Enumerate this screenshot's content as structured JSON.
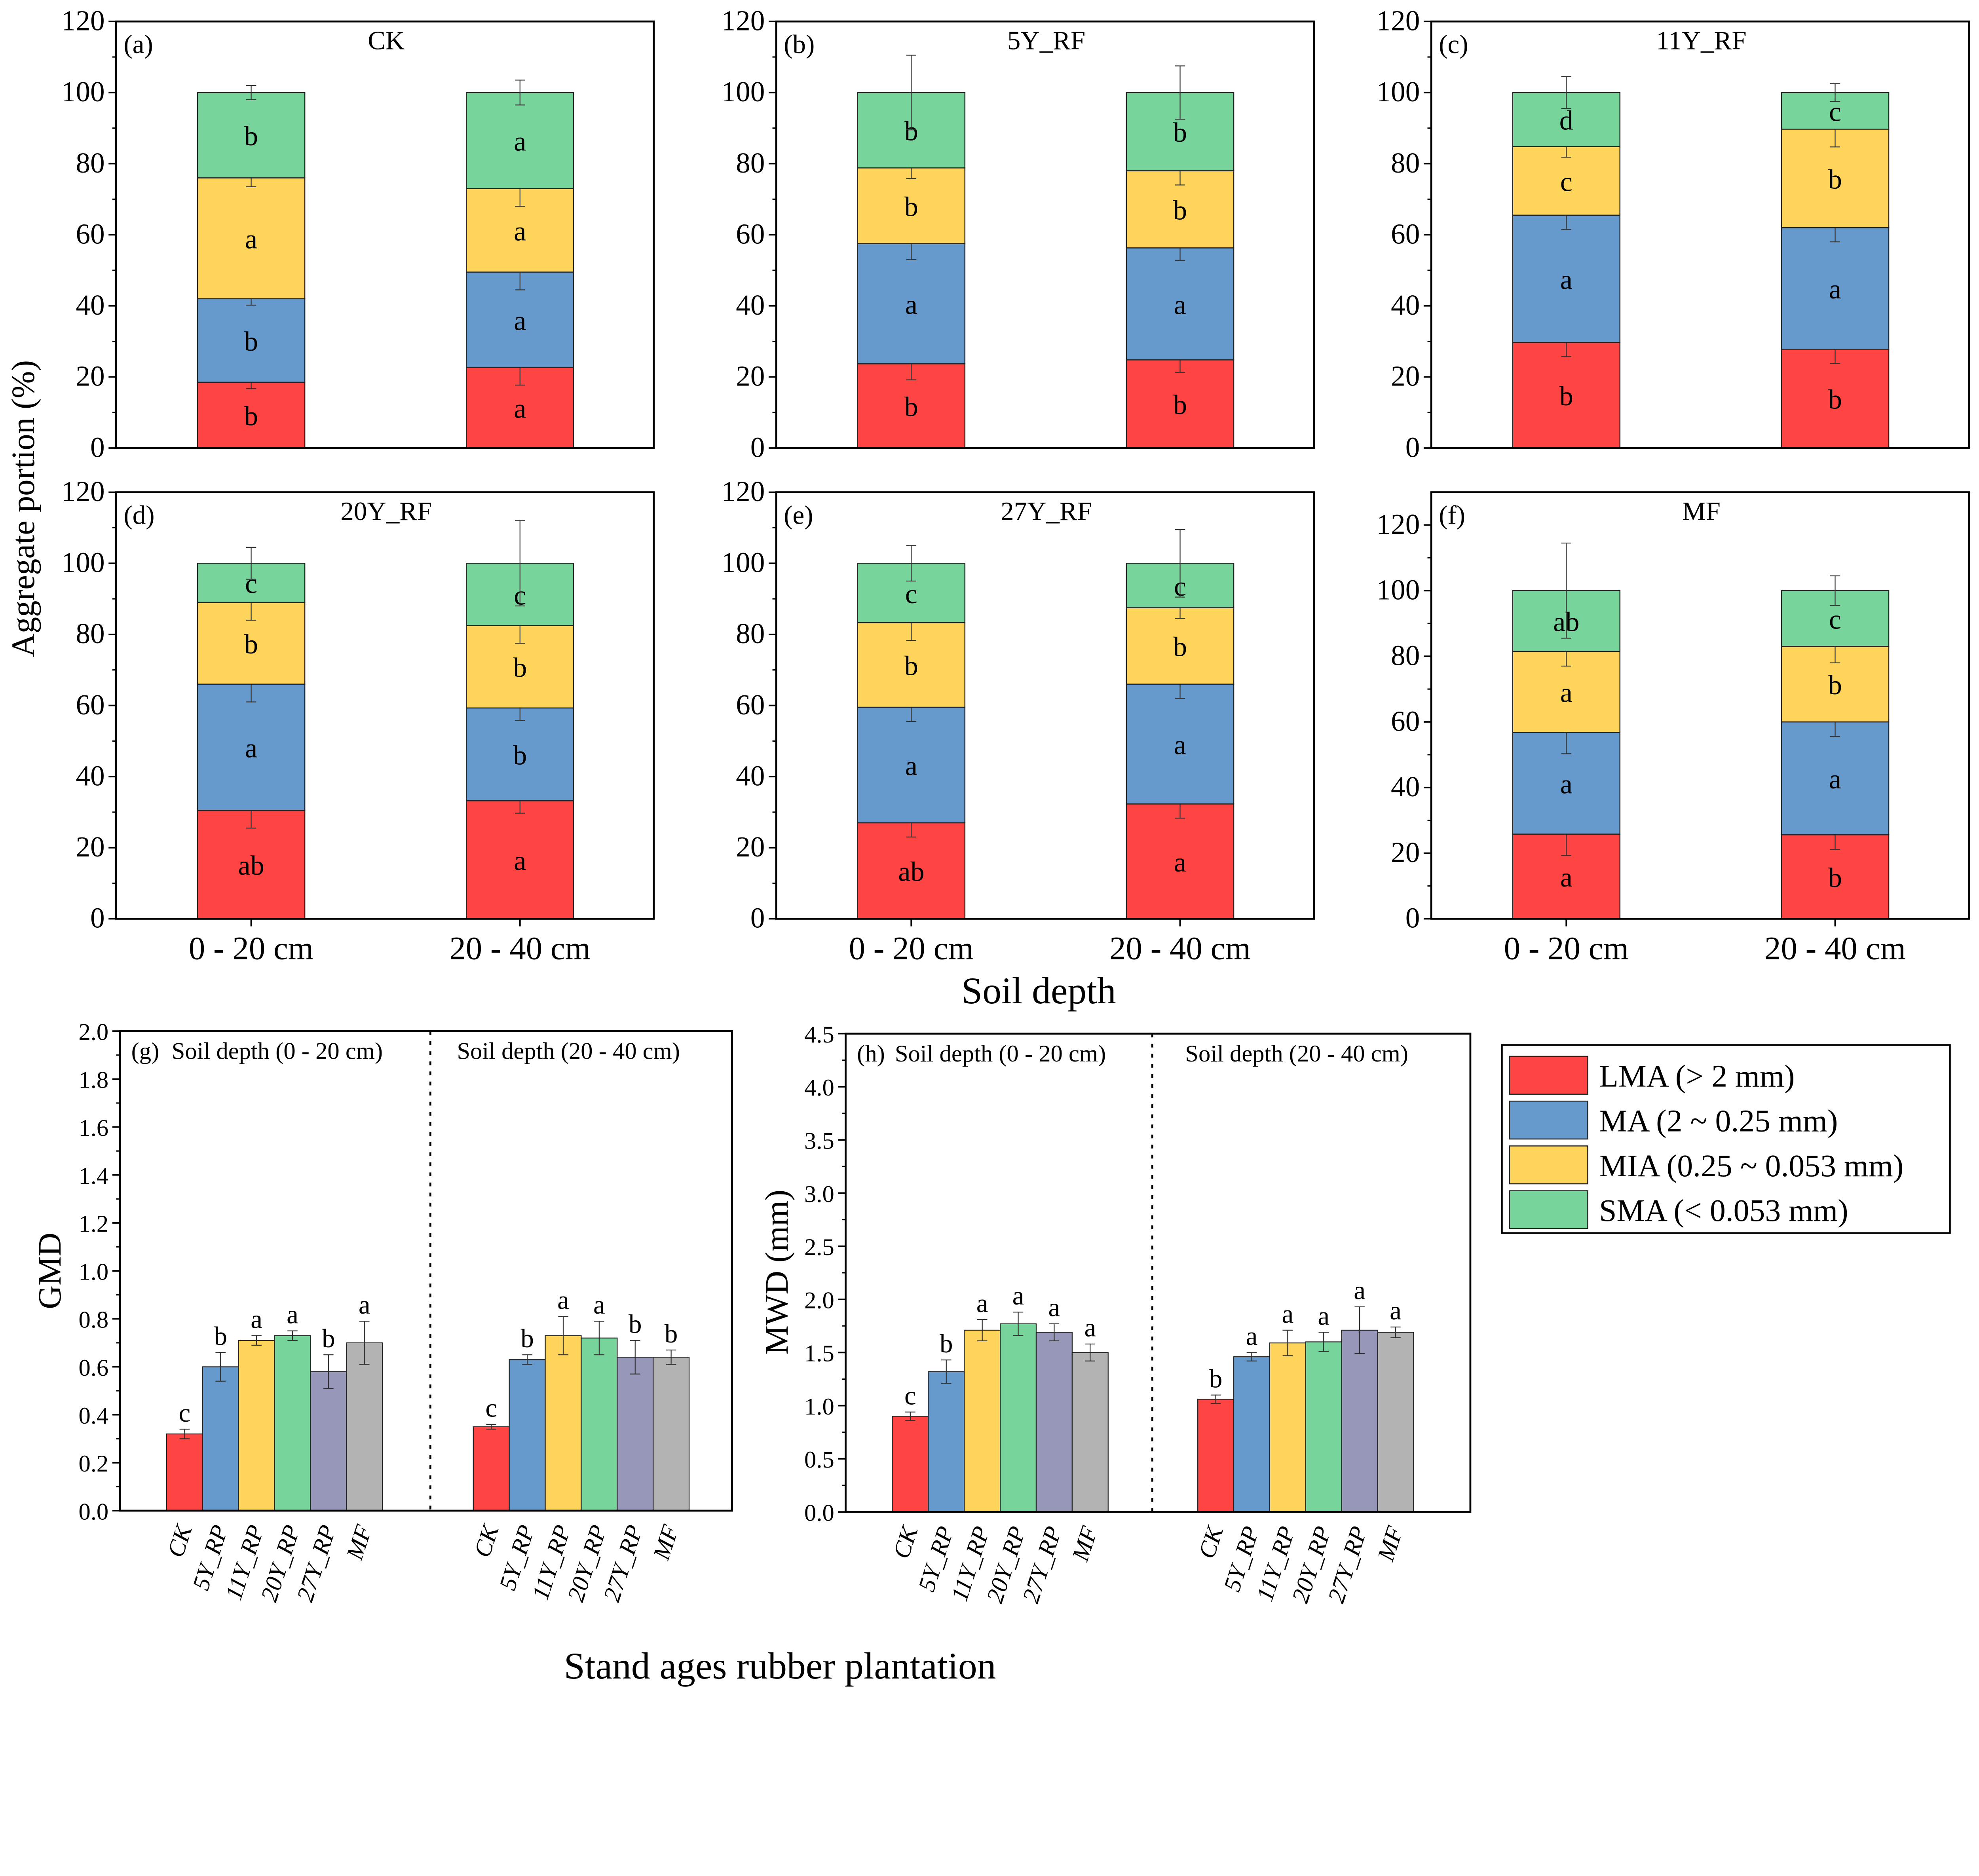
{
  "colors": {
    "LMA": "#FF4444",
    "MA": "#6699CC",
    "MIA": "#FFD45A",
    "SMA": "#77D49A",
    "27Y": "#9797BA",
    "MF": "#B3B3B3"
  },
  "labels": {
    "y_stacked": "Aggregate portion (%)",
    "x_stacked": "Soil depth",
    "y_gmd": "GMD",
    "y_mwd": "MWD (mm)",
    "x_bottom": "Stand ages rubber plantation"
  },
  "legend": [
    {
      "key": "LMA",
      "label": "LMA (> 2 mm)"
    },
    {
      "key": "MA",
      "label": "MA (2 ~ 0.25 mm)"
    },
    {
      "key": "MIA",
      "label": "MIA (0.25 ~ 0.053 mm)"
    },
    {
      "key": "SMA",
      "label": "SMA (< 0.053 mm)"
    }
  ],
  "chart_data": [
    {
      "type": "bar",
      "stacked": true,
      "panel": "(a)",
      "title": "CK",
      "categories": [
        "0 - 20 cm",
        "20 - 40 cm"
      ],
      "ylim": [
        0,
        120
      ],
      "yticks": [
        0,
        20,
        40,
        60,
        80,
        100,
        120
      ],
      "series": [
        {
          "name": "LMA (> 2 mm)",
          "values": [
            18.5,
            22.7
          ],
          "errors": [
            1.8,
            5
          ],
          "letters": [
            "b",
            "a"
          ]
        },
        {
          "name": "MA (2 ~ 0.25 mm)",
          "values": [
            23.5,
            26.8
          ],
          "errors": [
            1.8,
            5
          ],
          "letters": [
            "b",
            "a"
          ]
        },
        {
          "name": "MIA (0.25 ~ 0.053 mm)",
          "values": [
            34,
            23.5
          ],
          "errors": [
            2.5,
            5
          ],
          "letters": [
            "a",
            "a"
          ]
        },
        {
          "name": "SMA (< 0.053 mm)",
          "values": [
            24,
            27
          ],
          "errors": [
            2,
            3.5
          ],
          "letters": [
            "b",
            "a"
          ]
        }
      ]
    },
    {
      "type": "bar",
      "stacked": true,
      "panel": "(b)",
      "title": "5Y_RF",
      "categories": [
        "0 - 20 cm",
        "20 - 40 cm"
      ],
      "ylim": [
        0,
        120
      ],
      "yticks": [
        0,
        20,
        40,
        60,
        80,
        100,
        120
      ],
      "series": [
        {
          "name": "LMA (> 2 mm)",
          "values": [
            23.7,
            24.8
          ],
          "errors": [
            4.5,
            3.5
          ],
          "letters": [
            "b",
            "b"
          ]
        },
        {
          "name": "MA (2 ~ 0.25 mm)",
          "values": [
            33.8,
            31.5
          ],
          "errors": [
            4.5,
            3.5
          ],
          "letters": [
            "a",
            "a"
          ]
        },
        {
          "name": "MIA (0.25 ~ 0.053 mm)",
          "values": [
            21.3,
            21.7
          ],
          "errors": [
            3,
            4
          ],
          "letters": [
            "b",
            "b"
          ]
        },
        {
          "name": "SMA (< 0.053 mm)",
          "values": [
            21.2,
            22
          ],
          "errors": [
            10.5,
            7.5
          ],
          "letters": [
            "b",
            "b"
          ]
        }
      ]
    },
    {
      "type": "bar",
      "stacked": true,
      "panel": "(c)",
      "title": "11Y_RF",
      "categories": [
        "0 - 20 cm",
        "20 - 40 cm"
      ],
      "ylim": [
        0,
        120
      ],
      "yticks": [
        0,
        20,
        40,
        60,
        80,
        100,
        120
      ],
      "series": [
        {
          "name": "LMA (> 2 mm)",
          "values": [
            29.7,
            27.8
          ],
          "errors": [
            4,
            4
          ],
          "letters": [
            "b",
            "b"
          ]
        },
        {
          "name": "MA (2 ~ 0.25 mm)",
          "values": [
            35.8,
            34.2
          ],
          "errors": [
            4,
            4
          ],
          "letters": [
            "a",
            "a"
          ]
        },
        {
          "name": "MIA (0.25 ~ 0.053 mm)",
          "values": [
            19.3,
            27.7
          ],
          "errors": [
            3,
            5
          ],
          "letters": [
            "c",
            "b"
          ]
        },
        {
          "name": "SMA (< 0.053 mm)",
          "values": [
            15.2,
            10.3
          ],
          "errors": [
            4.5,
            2.5
          ],
          "letters": [
            "d",
            "c"
          ]
        }
      ]
    },
    {
      "type": "bar",
      "stacked": true,
      "panel": "(d)",
      "title": "20Y_RF",
      "categories": [
        "0 - 20 cm",
        "20 - 40 cm"
      ],
      "ylim": [
        0,
        120
      ],
      "yticks": [
        0,
        20,
        40,
        60,
        80,
        100,
        120
      ],
      "series": [
        {
          "name": "LMA (> 2 mm)",
          "values": [
            30.5,
            33.2
          ],
          "errors": [
            5,
            3.5
          ],
          "letters": [
            "ab",
            "a"
          ]
        },
        {
          "name": "MA (2 ~ 0.25 mm)",
          "values": [
            35.5,
            26.1
          ],
          "errors": [
            5,
            3.5
          ],
          "letters": [
            "a",
            "b"
          ]
        },
        {
          "name": "MIA (0.25 ~ 0.053 mm)",
          "values": [
            23,
            23.2
          ],
          "errors": [
            5,
            5
          ],
          "letters": [
            "b",
            "b"
          ]
        },
        {
          "name": "SMA (< 0.053 mm)",
          "values": [
            11,
            17.5
          ],
          "errors": [
            4.5,
            12
          ],
          "letters": [
            "c",
            "c"
          ]
        }
      ]
    },
    {
      "type": "bar",
      "stacked": true,
      "panel": "(e)",
      "title": "27Y_RF",
      "categories": [
        "0 - 20 cm",
        "20 - 40 cm"
      ],
      "ylim": [
        0,
        120
      ],
      "yticks": [
        0,
        20,
        40,
        60,
        80,
        100,
        120
      ],
      "series": [
        {
          "name": "LMA (> 2 mm)",
          "values": [
            27,
            32.3
          ],
          "errors": [
            4,
            4
          ],
          "letters": [
            "ab",
            "a"
          ]
        },
        {
          "name": "MA (2 ~ 0.25 mm)",
          "values": [
            32.5,
            33.7
          ],
          "errors": [
            4,
            4
          ],
          "letters": [
            "a",
            "a"
          ]
        },
        {
          "name": "MIA (0.25 ~ 0.053 mm)",
          "values": [
            23.8,
            21.5
          ],
          "errors": [
            5,
            3
          ],
          "letters": [
            "b",
            "b"
          ]
        },
        {
          "name": "SMA (< 0.053 mm)",
          "values": [
            16.7,
            12.5
          ],
          "errors": [
            5,
            9.5
          ],
          "letters": [
            "c",
            "c"
          ]
        }
      ]
    },
    {
      "type": "bar",
      "stacked": true,
      "panel": "(f)",
      "title": "MF",
      "categories": [
        "0 - 20 cm",
        "20 - 40 cm"
      ],
      "ylim": [
        0,
        130
      ],
      "yticks": [
        0,
        20,
        40,
        60,
        80,
        100,
        120
      ],
      "series": [
        {
          "name": "LMA (> 2 mm)",
          "values": [
            25.8,
            25.6
          ],
          "errors": [
            6.5,
            4.5
          ],
          "letters": [
            "a",
            "b"
          ]
        },
        {
          "name": "MA (2 ~ 0.25 mm)",
          "values": [
            31,
            34.4
          ],
          "errors": [
            6.5,
            4.5
          ],
          "letters": [
            "a",
            "a"
          ]
        },
        {
          "name": "MIA (0.25 ~ 0.053 mm)",
          "values": [
            24.7,
            23
          ],
          "errors": [
            4.5,
            5
          ],
          "letters": [
            "a",
            "b"
          ]
        },
        {
          "name": "SMA (< 0.053 mm)",
          "values": [
            18.5,
            17
          ],
          "errors": [
            14.5,
            4.5
          ],
          "letters": [
            "ab",
            "c"
          ]
        }
      ]
    },
    {
      "type": "bar",
      "panel": "(g)",
      "ylabel": "GMD",
      "ylim": [
        0,
        2.0
      ],
      "yticks": [
        0.0,
        0.2,
        0.4,
        0.6,
        0.8,
        1.0,
        1.2,
        1.4,
        1.6,
        1.8,
        2.0
      ],
      "groups": [
        "Soil depth (0 - 20 cm)",
        "Soil depth (20 - 40 cm)"
      ],
      "categories": [
        "CK",
        "5Y_RP",
        "11Y_RP",
        "20Y_RP",
        "27Y_RP",
        "MF"
      ],
      "values": [
        [
          0.32,
          0.6,
          0.71,
          0.73,
          0.58,
          0.7
        ],
        [
          0.35,
          0.63,
          0.73,
          0.72,
          0.64,
          0.64
        ]
      ],
      "errors": [
        [
          0.02,
          0.06,
          0.02,
          0.02,
          0.07,
          0.09
        ],
        [
          0.01,
          0.02,
          0.08,
          0.07,
          0.07,
          0.03
        ]
      ],
      "letters": [
        [
          "c",
          "b",
          "a",
          "a",
          "b",
          "a"
        ],
        [
          "c",
          "b",
          "a",
          "a",
          "b",
          "b"
        ]
      ]
    },
    {
      "type": "bar",
      "panel": "(h)",
      "ylabel": "MWD (mm)",
      "ylim": [
        0,
        4.5
      ],
      "yticks": [
        0.0,
        0.5,
        1.0,
        1.5,
        2.0,
        2.5,
        3.0,
        3.5,
        4.0,
        4.5
      ],
      "groups": [
        "Soil depth (0 - 20 cm)",
        "Soil depth (20 - 40 cm)"
      ],
      "categories": [
        "CK",
        "5Y_RP",
        "11Y_RP",
        "20Y_RP",
        "27Y_RP",
        "MF"
      ],
      "values": [
        [
          0.9,
          1.32,
          1.71,
          1.77,
          1.69,
          1.5
        ],
        [
          1.06,
          1.46,
          1.59,
          1.6,
          1.71,
          1.69
        ]
      ],
      "errors": [
        [
          0.04,
          0.11,
          0.1,
          0.11,
          0.08,
          0.08
        ],
        [
          0.04,
          0.04,
          0.12,
          0.09,
          0.22,
          0.05
        ]
      ],
      "letters": [
        [
          "c",
          "b",
          "a",
          "a",
          "a",
          "a"
        ],
        [
          "b",
          "a",
          "a",
          "a",
          "a",
          "a"
        ]
      ]
    }
  ]
}
